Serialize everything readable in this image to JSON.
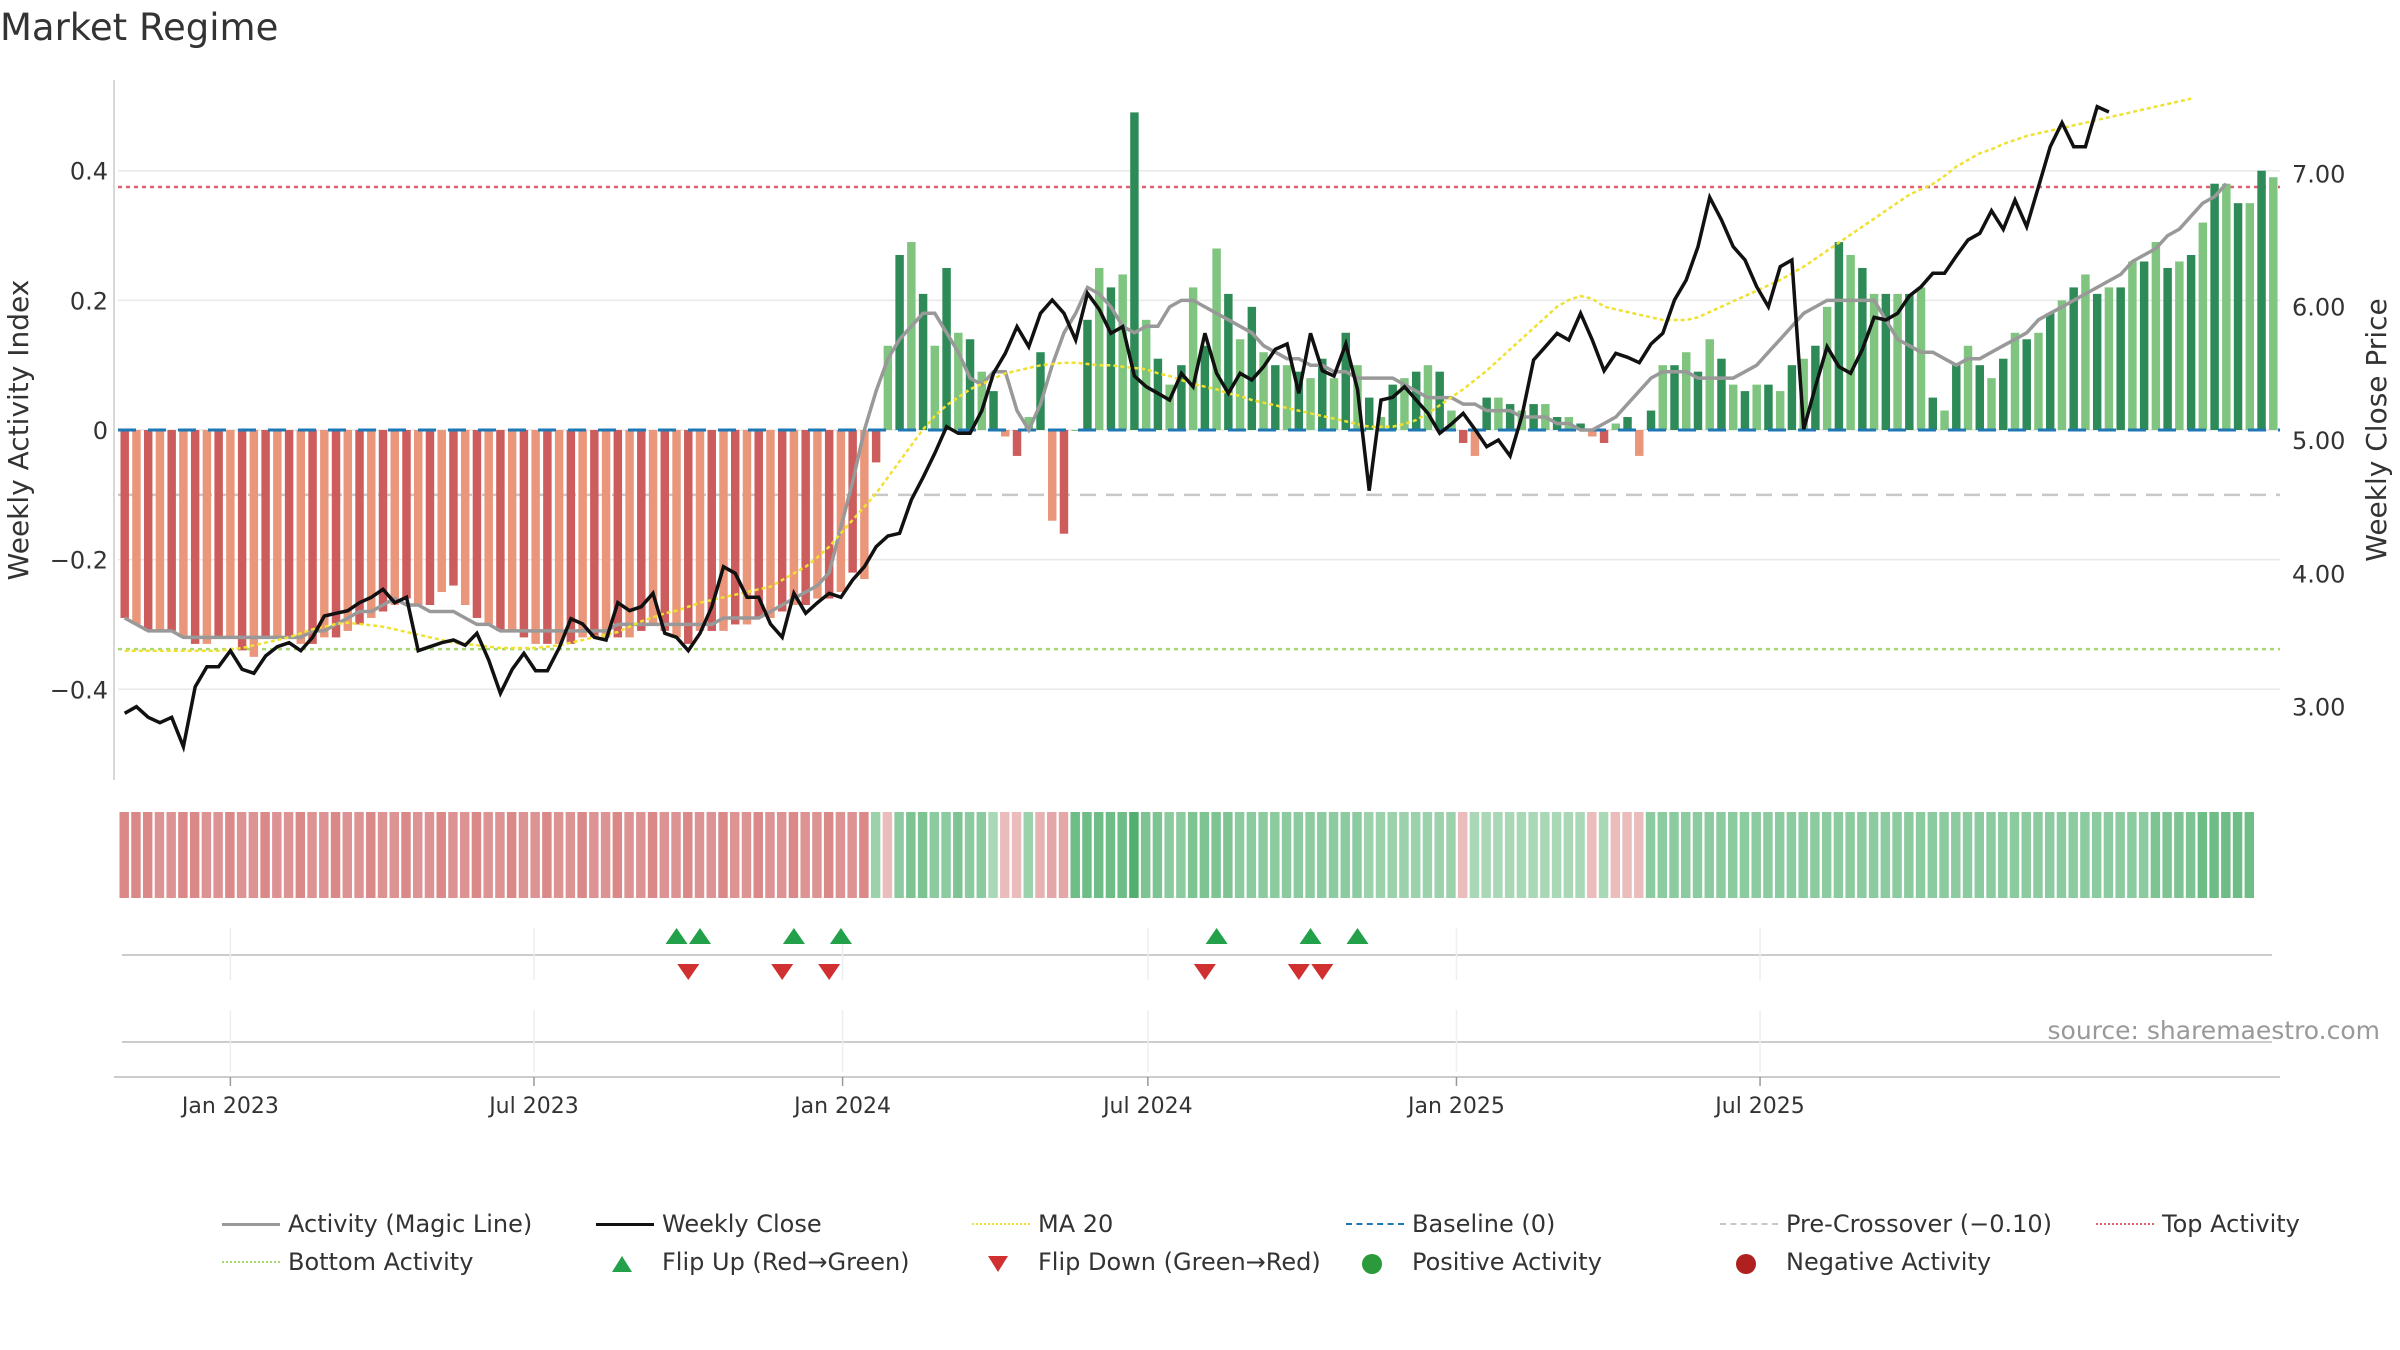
{
  "title": "Market Regime",
  "source": "source: sharemaestro.com",
  "colors": {
    "positive_dark": "#2e8b57",
    "positive_light": "#7fc47f",
    "negative_dark": "#cd5c5c",
    "negative_light": "#e9967a",
    "magic_line": "#999999",
    "close": "#111111",
    "ma20": "#f0e130",
    "baseline": "#1f77b4",
    "pre_crossover": "#c8c8c8",
    "top_activity": "#e06070",
    "bottom_activity": "#a8d870",
    "flip_up": "#22a04a",
    "flip_down": "#d03030",
    "pos_dot": "#2a9a3a",
    "neg_dot": "#b02020"
  },
  "chart_data": {
    "type": "bar",
    "title": "Market Regime",
    "ylabel_left": "Weekly Activity Index",
    "ylabel_right": "Weekly Close Price",
    "left_ticks": [
      "0.4",
      "0.2",
      "0",
      "−0.2",
      "−0.4"
    ],
    "left_tick_values": [
      0.4,
      0.2,
      0,
      -0.2,
      -0.4
    ],
    "right_ticks": [
      "7.00",
      "6.00",
      "5.00",
      "4.00",
      "3.00"
    ],
    "right_tick_values": [
      7,
      6,
      5,
      4,
      3
    ],
    "x_ticks": [
      "Jan 2023",
      "Jul 2023",
      "Jan 2024",
      "Jul 2024",
      "Jan 2025",
      "Jul 2025"
    ],
    "x_tick_dates": [
      "2023-01-01",
      "2023-07-01",
      "2024-01-01",
      "2024-07-01",
      "2025-01-01",
      "2025-07-01"
    ],
    "start_date": "2022-10-30",
    "left_ylim": [
      -0.54,
      0.54
    ],
    "right_ylim": [
      2.45,
      7.7
    ],
    "reference_lines": {
      "baseline": 0,
      "pre_crossover": -0.1,
      "top_activity": 0.375,
      "bottom_activity": -0.338
    },
    "activity": [
      -0.29,
      -0.3,
      -0.31,
      -0.31,
      -0.31,
      -0.32,
      -0.33,
      -0.33,
      -0.32,
      -0.32,
      -0.34,
      -0.35,
      -0.32,
      -0.32,
      -0.32,
      -0.33,
      -0.33,
      -0.32,
      -0.32,
      -0.31,
      -0.3,
      -0.29,
      -0.28,
      -0.27,
      -0.26,
      -0.27,
      -0.27,
      -0.25,
      -0.24,
      -0.27,
      -0.29,
      -0.3,
      -0.31,
      -0.31,
      -0.32,
      -0.33,
      -0.33,
      -0.33,
      -0.33,
      -0.32,
      -0.32,
      -0.32,
      -0.32,
      -0.32,
      -0.31,
      -0.3,
      -0.31,
      -0.32,
      -0.33,
      -0.31,
      -0.31,
      -0.31,
      -0.3,
      -0.3,
      -0.29,
      -0.29,
      -0.28,
      -0.27,
      -0.27,
      -0.26,
      -0.26,
      -0.25,
      -0.22,
      -0.23,
      -0.05,
      0.13,
      0.27,
      0.29,
      0.21,
      0.13,
      0.25,
      0.15,
      0.14,
      0.09,
      0.06,
      -0.01,
      -0.04,
      0.02,
      0.12,
      -0.14,
      -0.16,
      0.0,
      0.17,
      0.25,
      0.22,
      0.24,
      0.49,
      0.17,
      0.11,
      0.07,
      0.1,
      0.22,
      0.13,
      0.28,
      0.21,
      0.14,
      0.19,
      0.12,
      0.1,
      0.1,
      0.09,
      0.08,
      0.11,
      0.08,
      0.15,
      0.1,
      0.05,
      0.02,
      0.07,
      0.08,
      0.09,
      0.1,
      0.09,
      0.03,
      -0.02,
      -0.04,
      0.05,
      0.05,
      0.04,
      0.03,
      0.04,
      0.04,
      0.02,
      0.02,
      0.01,
      -0.01,
      -0.02,
      0.01,
      0.02,
      -0.04,
      0.03,
      0.1,
      0.1,
      0.12,
      0.09,
      0.14,
      0.11,
      0.07,
      0.06,
      0.07,
      0.07,
      0.06,
      0.1,
      0.11,
      0.13,
      0.19,
      0.29,
      0.27,
      0.25,
      0.21,
      0.21,
      0.21,
      0.21,
      0.22,
      0.05,
      0.03,
      0.1,
      0.13,
      0.1,
      0.08,
      0.11,
      0.15,
      0.14,
      0.15,
      0.18,
      0.2,
      0.22,
      0.24,
      0.21,
      0.22,
      0.22,
      0.26,
      0.26,
      0.29,
      0.25,
      0.26,
      0.27,
      0.32,
      0.38,
      0.38,
      0.35,
      0.35,
      0.4,
      0.39
    ],
    "activity_line": [
      -0.29,
      -0.3,
      -0.31,
      -0.31,
      -0.31,
      -0.32,
      -0.32,
      -0.32,
      -0.32,
      -0.32,
      -0.32,
      -0.32,
      -0.32,
      -0.32,
      -0.32,
      -0.32,
      -0.31,
      -0.31,
      -0.3,
      -0.29,
      -0.28,
      -0.28,
      -0.27,
      -0.26,
      -0.27,
      -0.27,
      -0.28,
      -0.28,
      -0.28,
      -0.29,
      -0.3,
      -0.3,
      -0.31,
      -0.31,
      -0.31,
      -0.31,
      -0.31,
      -0.31,
      -0.31,
      -0.31,
      -0.31,
      -0.31,
      -0.3,
      -0.3,
      -0.3,
      -0.3,
      -0.3,
      -0.3,
      -0.3,
      -0.3,
      -0.3,
      -0.29,
      -0.29,
      -0.29,
      -0.29,
      -0.28,
      -0.27,
      -0.26,
      -0.25,
      -0.24,
      -0.22,
      -0.15,
      -0.08,
      0.0,
      0.06,
      0.11,
      0.14,
      0.16,
      0.18,
      0.18,
      0.15,
      0.12,
      0.08,
      0.07,
      0.09,
      0.09,
      0.03,
      0.0,
      0.04,
      0.1,
      0.15,
      0.18,
      0.22,
      0.21,
      0.19,
      0.16,
      0.15,
      0.16,
      0.16,
      0.19,
      0.2,
      0.2,
      0.19,
      0.18,
      0.17,
      0.16,
      0.15,
      0.13,
      0.12,
      0.11,
      0.11,
      0.1,
      0.1,
      0.09,
      0.09,
      0.08,
      0.08,
      0.08,
      0.08,
      0.07,
      0.06,
      0.05,
      0.05,
      0.05,
      0.04,
      0.04,
      0.03,
      0.03,
      0.03,
      0.02,
      0.02,
      0.02,
      0.01,
      0.01,
      0.0,
      0.0,
      0.01,
      0.02,
      0.04,
      0.06,
      0.08,
      0.09,
      0.09,
      0.09,
      0.08,
      0.08,
      0.08,
      0.08,
      0.09,
      0.1,
      0.12,
      0.14,
      0.16,
      0.18,
      0.19,
      0.2,
      0.2,
      0.2,
      0.2,
      0.2,
      0.17,
      0.14,
      0.13,
      0.12,
      0.12,
      0.11,
      0.1,
      0.11,
      0.11,
      0.12,
      0.13,
      0.14,
      0.15,
      0.17,
      0.18,
      0.19,
      0.2,
      0.21,
      0.22,
      0.23,
      0.24,
      0.26,
      0.27,
      0.28,
      0.3,
      0.31,
      0.33,
      0.35,
      0.36,
      0.38
    ],
    "close": [
      2.95,
      3.0,
      2.92,
      2.88,
      2.92,
      2.7,
      3.15,
      3.3,
      3.3,
      3.42,
      3.28,
      3.25,
      3.38,
      3.45,
      3.48,
      3.42,
      3.52,
      3.68,
      3.7,
      3.72,
      3.78,
      3.82,
      3.88,
      3.78,
      3.82,
      3.42,
      3.45,
      3.48,
      3.5,
      3.46,
      3.55,
      3.35,
      3.1,
      3.28,
      3.4,
      3.27,
      3.27,
      3.44,
      3.66,
      3.62,
      3.52,
      3.5,
      3.78,
      3.72,
      3.75,
      3.85,
      3.55,
      3.52,
      3.42,
      3.55,
      3.75,
      4.05,
      4.0,
      3.82,
      3.82,
      3.62,
      3.52,
      3.85,
      3.7,
      3.78,
      3.85,
      3.82,
      3.95,
      4.05,
      4.2,
      4.28,
      4.3,
      4.55,
      4.72,
      4.9,
      5.1,
      5.05,
      5.05,
      5.22,
      5.5,
      5.65,
      5.85,
      5.7,
      5.95,
      6.05,
      5.95,
      5.75,
      6.1,
      5.98,
      5.8,
      5.85,
      5.48,
      5.4,
      5.35,
      5.3,
      5.5,
      5.4,
      5.8,
      5.5,
      5.35,
      5.5,
      5.45,
      5.55,
      5.68,
      5.72,
      5.35,
      5.8,
      5.52,
      5.48,
      5.72,
      5.38,
      4.62,
      5.3,
      5.32,
      5.4,
      5.3,
      5.2,
      5.05,
      5.12,
      5.2,
      5.08,
      4.95,
      5.0,
      4.88,
      5.18,
      5.6,
      5.7,
      5.8,
      5.75,
      5.95,
      5.75,
      5.52,
      5.65,
      5.62,
      5.58,
      5.72,
      5.8,
      6.05,
      6.2,
      6.45,
      6.82,
      6.65,
      6.45,
      6.35,
      6.15,
      6.0,
      6.3,
      6.35,
      5.08,
      5.4,
      5.7,
      5.55,
      5.5,
      5.68,
      5.92,
      5.9,
      5.95,
      6.08,
      6.15,
      6.25,
      6.25,
      6.38,
      6.5,
      6.55,
      6.72,
      6.58,
      6.8,
      6.6,
      6.9,
      7.2,
      7.38,
      7.2,
      7.2,
      7.5,
      7.46
    ],
    "ma20": [
      3.42,
      3.42,
      3.42,
      3.42,
      3.42,
      3.42,
      3.42,
      3.42,
      3.42,
      3.43,
      3.44,
      3.46,
      3.48,
      3.5,
      3.52,
      3.55,
      3.58,
      3.6,
      3.62,
      3.63,
      3.62,
      3.61,
      3.6,
      3.58,
      3.56,
      3.54,
      3.52,
      3.5,
      3.48,
      3.47,
      3.46,
      3.45,
      3.44,
      3.44,
      3.44,
      3.44,
      3.45,
      3.46,
      3.48,
      3.5,
      3.52,
      3.54,
      3.56,
      3.6,
      3.64,
      3.67,
      3.7,
      3.72,
      3.75,
      3.78,
      3.8,
      3.82,
      3.84,
      3.86,
      3.88,
      3.9,
      3.95,
      4.0,
      4.05,
      4.12,
      4.2,
      4.3,
      4.4,
      4.5,
      4.6,
      4.72,
      4.84,
      4.96,
      5.08,
      5.18,
      5.26,
      5.32,
      5.38,
      5.42,
      5.46,
      5.5,
      5.52,
      5.54,
      5.56,
      5.57,
      5.58,
      5.58,
      5.57,
      5.56,
      5.56,
      5.55,
      5.54,
      5.53,
      5.5,
      5.48,
      5.45,
      5.42,
      5.4,
      5.38,
      5.35,
      5.33,
      5.3,
      5.28,
      5.26,
      5.24,
      5.22,
      5.2,
      5.18,
      5.16,
      5.14,
      5.12,
      5.1,
      5.1,
      5.1,
      5.12,
      5.15,
      5.2,
      5.26,
      5.32,
      5.38,
      5.45,
      5.52,
      5.6,
      5.68,
      5.76,
      5.84,
      5.92,
      6.0,
      6.05,
      6.08,
      6.06,
      6.0,
      5.98,
      5.96,
      5.94,
      5.92,
      5.9,
      5.9,
      5.9,
      5.92,
      5.96,
      6.0,
      6.04,
      6.08,
      6.12,
      6.16,
      6.2,
      6.25,
      6.3,
      6.36,
      6.42,
      6.48,
      6.54,
      6.6,
      6.66,
      6.72,
      6.78,
      6.84,
      6.88,
      6.92,
      6.98,
      7.05,
      7.1,
      7.15,
      7.18,
      7.22,
      7.25,
      7.28,
      7.3,
      7.32,
      7.34,
      7.36,
      7.38,
      7.4,
      7.42,
      7.44,
      7.46,
      7.48,
      7.5,
      7.52,
      7.54,
      7.56
    ],
    "ribbon_strength": [
      -0.8,
      -0.8,
      -0.8,
      -0.7,
      -0.7,
      -0.8,
      -0.8,
      -0.7,
      -0.7,
      -0.8,
      -0.7,
      -0.7,
      -0.8,
      -0.7,
      -0.7,
      -0.8,
      -0.7,
      -0.7,
      -0.8,
      -0.7,
      -0.7,
      -0.8,
      -0.7,
      -0.7,
      -0.8,
      -0.7,
      -0.7,
      -0.8,
      -0.7,
      -0.7,
      -0.8,
      -0.7,
      -0.7,
      -0.8,
      -0.7,
      -0.7,
      -0.8,
      -0.7,
      -0.7,
      -0.8,
      -0.7,
      -0.7,
      -0.8,
      -0.7,
      -0.7,
      -0.8,
      -0.7,
      -0.7,
      -0.8,
      -0.7,
      -0.7,
      -0.8,
      -0.7,
      -0.7,
      -0.8,
      -0.7,
      -0.7,
      -0.8,
      -0.7,
      -0.7,
      -0.8,
      -0.7,
      -0.7,
      -0.8,
      0.4,
      -0.3,
      0.5,
      0.6,
      0.6,
      0.5,
      0.5,
      0.6,
      0.5,
      0.5,
      0.3,
      -0.3,
      -0.3,
      0.4,
      -0.4,
      -0.5,
      -0.5,
      0.7,
      0.7,
      0.7,
      0.7,
      0.7,
      0.9,
      0.6,
      0.6,
      0.5,
      0.5,
      0.6,
      0.6,
      0.6,
      0.6,
      0.5,
      0.5,
      0.5,
      0.5,
      0.5,
      0.5,
      0.5,
      0.5,
      0.5,
      0.5,
      0.5,
      0.4,
      0.4,
      0.4,
      0.4,
      0.4,
      0.4,
      0.4,
      0.4,
      -0.3,
      0.3,
      0.3,
      0.3,
      0.3,
      0.3,
      0.3,
      0.3,
      0.3,
      0.3,
      0.3,
      -0.3,
      0.3,
      -0.3,
      -0.3,
      -0.3,
      0.5,
      0.5,
      0.5,
      0.5,
      0.5,
      0.5,
      0.5,
      0.5,
      0.5,
      0.5,
      0.5,
      0.5,
      0.5,
      0.5,
      0.5,
      0.5,
      0.5,
      0.5,
      0.5,
      0.5,
      0.5,
      0.5,
      0.5,
      0.5,
      0.5,
      0.5,
      0.5,
      0.5,
      0.5,
      0.5,
      0.5,
      0.5,
      0.5,
      0.5,
      0.5,
      0.5,
      0.5,
      0.5,
      0.5,
      0.5,
      0.5,
      0.5,
      0.5,
      0.6,
      0.6,
      0.6,
      0.6,
      0.7,
      0.7,
      0.7,
      0.7,
      0.7
    ],
    "flip_up_dates": [
      "2023-09-24",
      "2023-10-08",
      "2023-12-03",
      "2023-12-31",
      "2024-08-11",
      "2024-10-06",
      "2024-11-03"
    ],
    "flip_down_dates": [
      "2023-10-01",
      "2023-11-26",
      "2023-12-24",
      "2024-08-04",
      "2024-09-29",
      "2024-10-13"
    ]
  },
  "legend": [
    {
      "label": "Activity (Magic Line)",
      "kind": "line",
      "color": "#999999"
    },
    {
      "label": "Weekly Close",
      "kind": "line",
      "color": "#111111"
    },
    {
      "label": "MA 20",
      "kind": "dotted",
      "color": "#f0e130"
    },
    {
      "label": "Baseline (0)",
      "kind": "dashed",
      "color": "#1f77b4"
    },
    {
      "label": "Pre-Crossover (−0.10)",
      "kind": "dashed",
      "color": "#c8c8c8"
    },
    {
      "label": "Top Activity",
      "kind": "dotted",
      "color": "#e06070"
    },
    {
      "label": "Bottom Activity",
      "kind": "dotted",
      "color": "#a8d870"
    },
    {
      "label": "Flip Up (Red→Green)",
      "kind": "tri-up",
      "color": "#22a04a"
    },
    {
      "label": "Flip Down (Green→Red)",
      "kind": "tri-down",
      "color": "#d03030"
    },
    {
      "label": "Positive Activity",
      "kind": "dot",
      "color": "#2a9a3a"
    },
    {
      "label": "Negative Activity",
      "kind": "dot",
      "color": "#b02020"
    }
  ]
}
